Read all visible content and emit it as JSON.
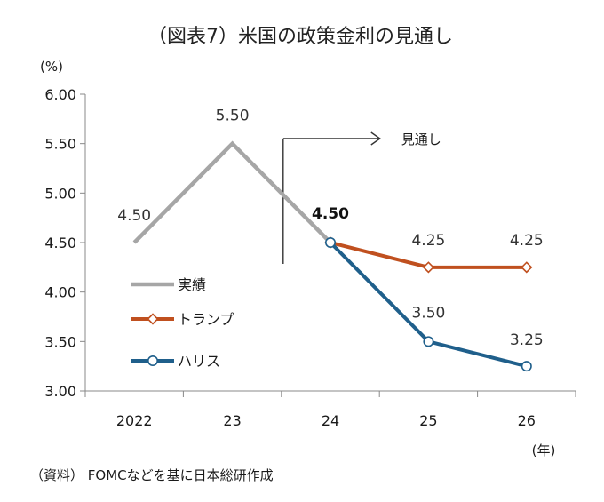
{
  "chart_data": {
    "type": "line",
    "title": "（図表7）米国の政策金利の見通し",
    "y_unit": "(%)",
    "x_unit": "(年)",
    "categories": [
      "2022",
      "23",
      "24",
      "25",
      "26"
    ],
    "ylim": [
      3.0,
      6.0
    ],
    "yticks": [
      "3.00",
      "3.50",
      "4.00",
      "4.50",
      "5.00",
      "5.50",
      "6.00"
    ],
    "grid": false,
    "legend_placement": "left-center",
    "series": [
      {
        "name": "実績",
        "color": "#a6a6a6",
        "marker": "none",
        "values": [
          4.5,
          5.5,
          4.5,
          null,
          null
        ],
        "labels": [
          "4.50",
          "5.50",
          "",
          "",
          ""
        ]
      },
      {
        "name": "トランプ",
        "color": "#c0501f",
        "marker": "diamond",
        "values": [
          null,
          null,
          4.5,
          4.25,
          4.25
        ],
        "labels": [
          "",
          "",
          "",
          "4.25",
          "4.25"
        ]
      },
      {
        "name": "ハリス",
        "color": "#1f5f8b",
        "marker": "circle",
        "values": [
          null,
          null,
          4.5,
          3.5,
          3.25
        ],
        "labels": [
          "",
          "",
          "4.50",
          "3.50",
          "3.25"
        ]
      }
    ],
    "annotation": {
      "text": "見通し",
      "from_category": "24"
    }
  },
  "source_note": "（資料） FOMCなどを基に日本総研作成"
}
